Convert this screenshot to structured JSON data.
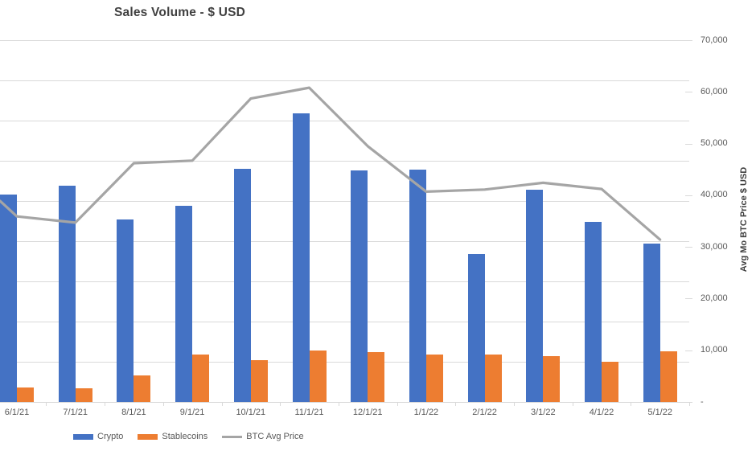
{
  "chart_data": {
    "type": "combo",
    "title": "Sales Volume - $ USD",
    "categories": [
      "6/1/21",
      "7/1/21",
      "8/1/21",
      "9/1/21",
      "10/1/21",
      "11/1/21",
      "12/1/21",
      "1/1/22",
      "2/1/22",
      "3/1/22",
      "4/1/22",
      "5/1/22"
    ],
    "series": [
      {
        "name": "Crypto",
        "type": "bar",
        "color": "#4472C4",
        "values": [
          40200,
          41800,
          35300,
          37900,
          45100,
          55900,
          44800,
          44900,
          28600,
          41100,
          34900,
          30700
        ]
      },
      {
        "name": "Stablecoins",
        "type": "bar",
        "color": "#ED7D31",
        "values": [
          2800,
          2700,
          5200,
          9200,
          8100,
          10000,
          9700,
          9200,
          9200,
          8900,
          7800,
          9800
        ]
      },
      {
        "name": "BTC Avg Price",
        "type": "line",
        "color": "#A5A5A5",
        "values": [
          35900,
          34700,
          46200,
          46700,
          58700,
          60800,
          49500,
          40700,
          41100,
          42400,
          41200,
          31400
        ],
        "edge_entry_value": 38900
      }
    ],
    "right_axis": {
      "title": "Avg Mo BTC Price $ USD",
      "min": 0,
      "max": 70000,
      "major_unit": 10000,
      "tick_labels_top_to_bottom": [
        "70,000",
        "60,000",
        "50,000",
        "40,000",
        "30,000",
        "20,000",
        "10,000",
        "-"
      ]
    },
    "left_axis": {
      "visible": false,
      "note": "Primary axis cropped off the left edge of the screenshot; bar values estimated on the right-axis scale. Gridlines (9 intervals) belong to the hidden primary axis."
    },
    "gridlines": {
      "horizontal": true,
      "vertical": false,
      "color": "#D9D9D9"
    },
    "legend": {
      "position": "bottom"
    },
    "colors": {
      "crypto_bar": "#4472C4",
      "stablecoins_bar": "#ED7D31",
      "btc_line": "#A5A5A5",
      "gridline": "#D9D9D9",
      "tick_label_text": "#595959",
      "title_text": "#404040"
    }
  }
}
